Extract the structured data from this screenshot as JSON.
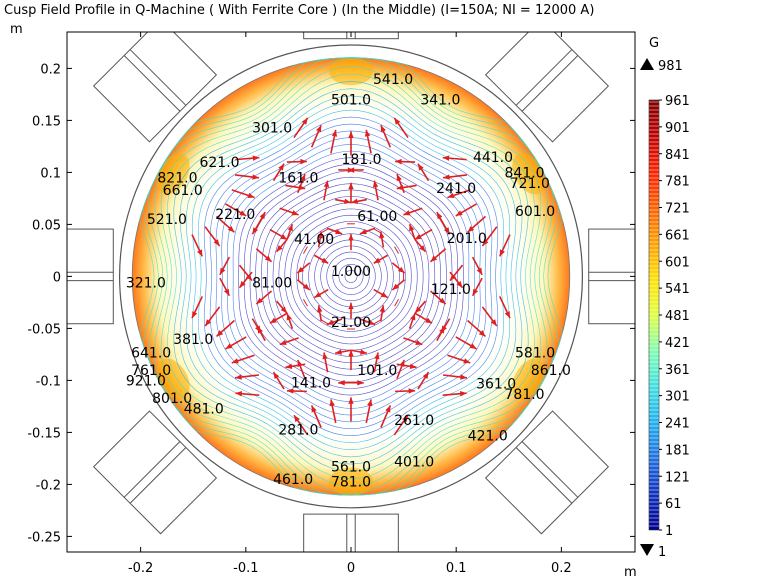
{
  "chart_data": {
    "type": "contour",
    "title": "Cusp Field Profile in Q-Machine ( With Ferrite Core ) (In the Middle) (I=150A; NI = 12000 A)",
    "x_unit": "m",
    "y_unit": "m",
    "xlim": [
      -0.27,
      0.27
    ],
    "ylim": [
      -0.265,
      0.235
    ],
    "x_ticks": [
      -0.2,
      -0.1,
      0,
      0.1,
      0.2
    ],
    "x_tick_labels": [
      "-0.2",
      "-0.1",
      "0",
      "0.1",
      "0.2"
    ],
    "y_ticks": [
      0.2,
      0.15,
      0.1,
      0.05,
      0,
      -0.05,
      -0.1,
      -0.15,
      -0.2,
      -0.25
    ],
    "y_tick_labels": [
      "0.2",
      "0.15",
      "0.1",
      "0.05",
      "0",
      "-0.05",
      "-0.1",
      "-0.15",
      "-0.2",
      "-0.25"
    ],
    "chamber_radius": 0.22,
    "inner_radius": 0.208,
    "contour_labels": [
      {
        "text": "541.0",
        "x": 0.04,
        "y": 0.19
      },
      {
        "text": "501.0",
        "x": 0.0,
        "y": 0.17
      },
      {
        "text": "341.0",
        "x": 0.085,
        "y": 0.17
      },
      {
        "text": "301.0",
        "x": -0.075,
        "y": 0.143
      },
      {
        "text": "181.0",
        "x": 0.01,
        "y": 0.113
      },
      {
        "text": "441.0",
        "x": 0.135,
        "y": 0.115
      },
      {
        "text": "621.0",
        "x": -0.125,
        "y": 0.11
      },
      {
        "text": "161.0",
        "x": -0.05,
        "y": 0.095
      },
      {
        "text": "241.0",
        "x": 0.1,
        "y": 0.085
      },
      {
        "text": "841.0",
        "x": 0.165,
        "y": 0.1
      },
      {
        "text": "721.0",
        "x": 0.17,
        "y": 0.09
      },
      {
        "text": "821.0",
        "x": -0.165,
        "y": 0.095
      },
      {
        "text": "661.0",
        "x": -0.16,
        "y": 0.083
      },
      {
        "text": "221.0",
        "x": -0.11,
        "y": 0.06
      },
      {
        "text": "601.0",
        "x": 0.175,
        "y": 0.063
      },
      {
        "text": "521.0",
        "x": -0.175,
        "y": 0.055
      },
      {
        "text": "61.00",
        "x": 0.025,
        "y": 0.058
      },
      {
        "text": "41.00",
        "x": -0.035,
        "y": 0.036
      },
      {
        "text": "201.0",
        "x": 0.11,
        "y": 0.037
      },
      {
        "text": "1.000",
        "x": 0.0,
        "y": 0.005
      },
      {
        "text": "321.0",
        "x": -0.195,
        "y": -0.006
      },
      {
        "text": "81.00",
        "x": -0.075,
        "y": -0.006
      },
      {
        "text": "121.0",
        "x": 0.095,
        "y": -0.012
      },
      {
        "text": "21.00",
        "x": 0.0,
        "y": -0.044
      },
      {
        "text": "381.0",
        "x": -0.15,
        "y": -0.06
      },
      {
        "text": "641.0",
        "x": -0.19,
        "y": -0.073
      },
      {
        "text": "581.0",
        "x": 0.175,
        "y": -0.073
      },
      {
        "text": "761.0",
        "x": -0.19,
        "y": -0.09
      },
      {
        "text": "101.0",
        "x": 0.025,
        "y": -0.09
      },
      {
        "text": "861.0",
        "x": 0.19,
        "y": -0.09
      },
      {
        "text": "921.0",
        "x": -0.195,
        "y": -0.1
      },
      {
        "text": "141.0",
        "x": -0.038,
        "y": -0.102
      },
      {
        "text": "361.0",
        "x": 0.138,
        "y": -0.103
      },
      {
        "text": "781.0",
        "x": 0.165,
        "y": -0.113
      },
      {
        "text": "801.0",
        "x": -0.17,
        "y": -0.117
      },
      {
        "text": "481.0",
        "x": -0.14,
        "y": -0.127
      },
      {
        "text": "261.0",
        "x": 0.06,
        "y": -0.138
      },
      {
        "text": "281.0",
        "x": -0.05,
        "y": -0.147
      },
      {
        "text": "421.0",
        "x": 0.13,
        "y": -0.153
      },
      {
        "text": "561.0",
        "x": 0.0,
        "y": -0.183
      },
      {
        "text": "401.0",
        "x": 0.06,
        "y": -0.178
      },
      {
        "text": "461.0",
        "x": -0.055,
        "y": -0.195
      },
      {
        "text": "781.0",
        "x": 0.0,
        "y": -0.197
      }
    ],
    "colorbar": {
      "unit": "G",
      "max_label": "981",
      "min_label": "1",
      "tick_labels": [
        "961",
        "901",
        "841",
        "781",
        "721",
        "661",
        "601",
        "541",
        "481",
        "421",
        "361",
        "301",
        "241",
        "181",
        "121",
        "61",
        "1"
      ],
      "colors": [
        "#800000",
        "#c00000",
        "#ff2000",
        "#ff6000",
        "#ffa000",
        "#ffe000",
        "#e0ff40",
        "#80ffb0",
        "#40e0e0",
        "#20b0f0",
        "#2070e0",
        "#1030c0",
        "#000090"
      ]
    }
  }
}
